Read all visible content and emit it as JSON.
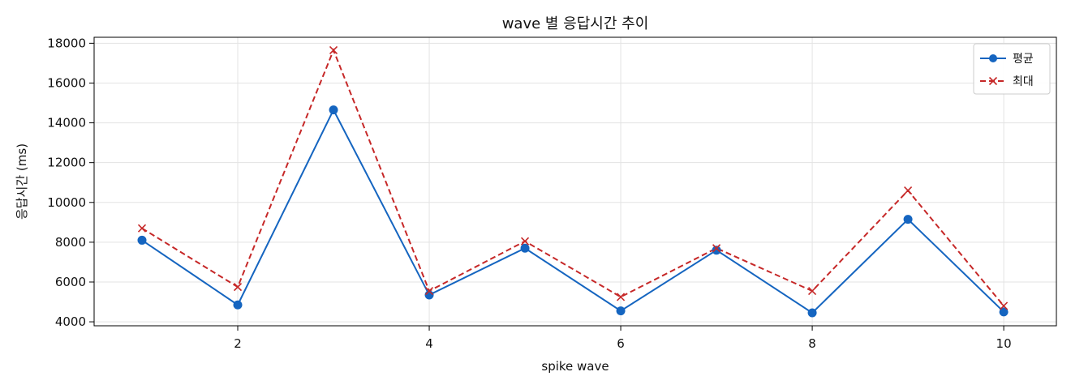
{
  "chart_data": {
    "type": "line",
    "title": "wave 별 응답시간 추이",
    "xlabel": "spike wave",
    "ylabel": "응답시간 (ms)",
    "x": [
      1,
      2,
      3,
      4,
      5,
      6,
      7,
      8,
      9,
      10
    ],
    "xlim": [
      0.5,
      10.55
    ],
    "ylim": [
      3800,
      18300
    ],
    "xticks": [
      2,
      4,
      6,
      8,
      10
    ],
    "yticks": [
      4000,
      6000,
      8000,
      10000,
      12000,
      14000,
      16000,
      18000
    ],
    "grid": true,
    "legend_position": "top-right",
    "series": [
      {
        "name": "평균",
        "values": [
          8100,
          4850,
          14650,
          5350,
          7700,
          4550,
          7600,
          4450,
          9150,
          4500
        ],
        "color": "#1565c0",
        "line_style": "solid",
        "marker": "circle"
      },
      {
        "name": "최대",
        "values": [
          8700,
          5750,
          17650,
          5550,
          8050,
          5250,
          7700,
          5550,
          10600,
          4800
        ],
        "color": "#c62828",
        "line_style": "dashed",
        "marker": "x"
      }
    ]
  }
}
